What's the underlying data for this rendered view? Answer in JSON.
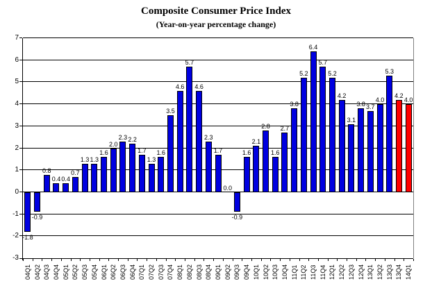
{
  "chart_data": {
    "type": "bar",
    "title": "Composite Consumer Price Index",
    "subtitle": "(Year-on-year percentage change)",
    "categories": [
      "04Q1",
      "04Q2",
      "04Q3",
      "04Q4",
      "05Q1",
      "05Q2",
      "05Q3",
      "05Q4",
      "06Q1",
      "06Q2",
      "06Q3",
      "06Q4",
      "07Q1",
      "07Q2",
      "07Q3",
      "07Q4",
      "08Q1",
      "08Q2",
      "08Q3",
      "08Q4",
      "09Q1",
      "09Q2",
      "09Q3",
      "09Q4",
      "10Q1",
      "10Q2",
      "10Q3",
      "10Q4",
      "11Q1",
      "11Q2",
      "11Q3",
      "11Q4",
      "12Q1",
      "12Q2",
      "12Q3",
      "12Q4",
      "13Q1",
      "13Q2",
      "13Q3",
      "13Q4",
      "14Q1"
    ],
    "values": [
      -1.8,
      -0.9,
      0.8,
      0.4,
      0.4,
      0.7,
      1.3,
      1.3,
      1.6,
      2.0,
      2.3,
      2.2,
      1.7,
      1.3,
      1.6,
      3.5,
      4.6,
      5.7,
      4.6,
      2.3,
      1.7,
      0.0,
      -0.9,
      1.6,
      2.1,
      2.8,
      1.6,
      2.7,
      3.8,
      5.2,
      6.4,
      5.7,
      5.2,
      4.2,
      3.1,
      3.8,
      3.7,
      4.0,
      5.3,
      4.2,
      4.0
    ],
    "highlight_categories": [
      "13Q4",
      "14Q1"
    ],
    "colors": {
      "bar": "#0000E0",
      "highlight": "#FF0000"
    },
    "ylim": [
      -3,
      7
    ],
    "yticks": [
      7,
      6,
      5,
      4,
      3,
      2,
      1,
      0,
      -1,
      -2,
      -3
    ],
    "grid": true,
    "legend": false,
    "value_labels": true
  }
}
